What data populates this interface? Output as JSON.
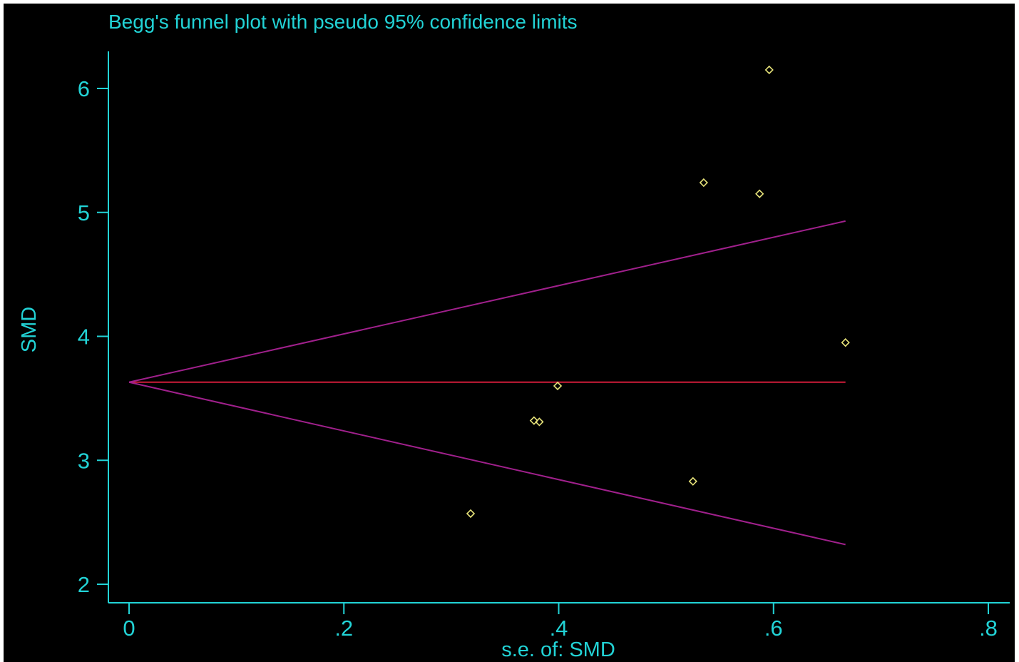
{
  "chart_data": {
    "type": "scatter",
    "title": "Begg's funnel plot with pseudo 95% confidence limits",
    "xlabel": "s.e. of: SMD",
    "ylabel": "SMD",
    "xlim": [
      0,
      0.8
    ],
    "ylim": [
      2,
      6.3
    ],
    "x_ticks": [
      0,
      0.2,
      0.4,
      0.6,
      0.8
    ],
    "x_tick_labels": [
      "0",
      ".2",
      ".4",
      ".6",
      ".8"
    ],
    "y_ticks": [
      2,
      3,
      4,
      5,
      6
    ],
    "y_tick_labels": [
      "2",
      "3",
      "4",
      "5",
      "6"
    ],
    "grid": false,
    "series": [
      {
        "type": "scatter",
        "marker": "hollow-diamond",
        "points": [
          {
            "x": 0.318,
            "y": 2.57
          },
          {
            "x": 0.377,
            "y": 3.32
          },
          {
            "x": 0.382,
            "y": 3.31
          },
          {
            "x": 0.399,
            "y": 3.6
          },
          {
            "x": 0.525,
            "y": 2.83
          },
          {
            "x": 0.535,
            "y": 5.24
          },
          {
            "x": 0.587,
            "y": 5.15
          },
          {
            "x": 0.596,
            "y": 6.15
          },
          {
            "x": 0.667,
            "y": 3.95
          }
        ]
      }
    ],
    "pooled_estimate": {
      "y": 3.63,
      "x_range": [
        0,
        0.667
      ]
    },
    "confidence_limits": {
      "upper": [
        {
          "x": 0,
          "y": 3.63
        },
        {
          "x": 0.667,
          "y": 4.93
        }
      ],
      "lower": [
        {
          "x": 0,
          "y": 3.63
        },
        {
          "x": 0.667,
          "y": 2.32
        }
      ]
    },
    "colors": {
      "background": "#000000",
      "axes_and_text": "#22d3d6",
      "points": "#e8e47a",
      "pooled_line": "#d01c3a",
      "limit_lines": "#a0208c"
    }
  }
}
